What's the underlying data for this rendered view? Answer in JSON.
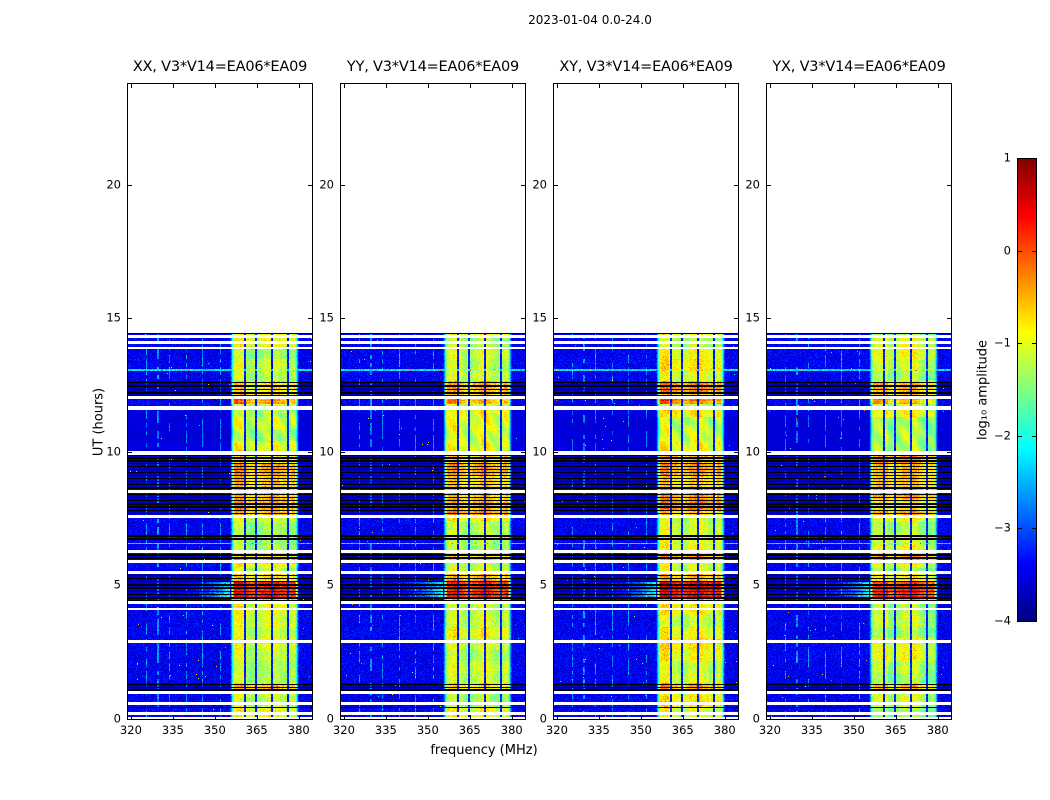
{
  "chart_data": {
    "type": "heatmap",
    "title": "2023-01-04 0.0-24.0",
    "xlabel": "frequency (MHz)",
    "ylabel": "UT (hours)",
    "colorbar_label": "log₁₀ amplitude",
    "colormap": "jet",
    "grid": false,
    "xlim": [
      318.6,
      385.1
    ],
    "ylim": [
      0,
      23.8
    ],
    "clim": [
      -4,
      1
    ],
    "xticks": [
      320,
      335,
      350,
      365,
      380
    ],
    "yticks": [
      0,
      5,
      10,
      15,
      20
    ],
    "ctick_labels": [
      "1",
      "0",
      "−1",
      "−2",
      "−3",
      "−4"
    ],
    "ctick_values": [
      1,
      0,
      -1,
      -2,
      -3,
      -4
    ],
    "panels": [
      {
        "pol": "XX",
        "title": "XX, V3*V14=EA06*EA09",
        "seed": 101,
        "band_boost": 0.0,
        "burst_boost": 0.0
      },
      {
        "pol": "YY",
        "title": "YY, V3*V14=EA06*EA09",
        "seed": 202,
        "band_boost": 0.03,
        "burst_boost": -0.08
      },
      {
        "pol": "XY",
        "title": "XY, V3*V14=EA06*EA09",
        "seed": 303,
        "band_boost": 0.1,
        "burst_boost": 0.12
      },
      {
        "pol": "YX",
        "title": "YX, V3*V14=EA06*EA09",
        "seed": 404,
        "band_boost": -0.04,
        "burst_boost": -0.15
      }
    ],
    "features": {
      "time_coverage_hours": [
        0,
        14.47
      ],
      "background_level": -3.45,
      "quiet_block_hours": [
        10.05,
        11.55
      ],
      "rfi_band_mhz": [
        355.9,
        379.3
      ],
      "rfi_band_level": -1.15,
      "band_notch_lines_mhz": [
        360.7,
        364.4,
        370.4,
        376.0
      ],
      "faint_vertical_lines_mhz": [
        325.4,
        329.5,
        333.6,
        339.8,
        345.5,
        351.9
      ],
      "bursts": [
        {
          "hours": [
            4.56,
            5.14
          ],
          "level": 0.25,
          "tail": true,
          "left_weight": false
        },
        {
          "hours": [
            11.82,
            12.03
          ],
          "level": -0.55,
          "tail": false,
          "left_weight": true
        }
      ],
      "bright_rows_hours": [
        13.08,
        6.58
      ],
      "gap_rows_hours": [
        [
          14.32,
          0.1
        ],
        [
          14.1,
          0.1
        ],
        [
          13.9,
          0.1
        ],
        [
          12.05,
          0.11
        ],
        [
          11.66,
          0.16
        ],
        [
          9.97,
          0.15
        ],
        [
          8.53,
          0.11
        ],
        [
          7.6,
          0.11
        ],
        [
          6.27,
          0.11
        ],
        [
          5.93,
          0.11
        ],
        [
          5.5,
          0.13
        ],
        [
          4.38,
          0.1
        ],
        [
          4.13,
          0.1
        ],
        [
          2.93,
          0.12
        ],
        [
          1.02,
          0.1
        ],
        [
          0.6,
          0.1
        ],
        [
          0.22,
          0.1
        ],
        [
          0.06,
          0.05
        ]
      ],
      "flagged_rows_hours": [
        14.44,
        12.62,
        12.48,
        12.35,
        12.22,
        12.12,
        9.9,
        9.79,
        9.68,
        9.57,
        9.46,
        9.35,
        9.24,
        9.12,
        9.01,
        8.9,
        8.79,
        8.67,
        8.43,
        8.31,
        8.19,
        8.07,
        7.95,
        7.83,
        7.71,
        6.87,
        6.76,
        6.15,
        6.04,
        5.4,
        5.28,
        5.16,
        5.04,
        4.92,
        4.8,
        4.67,
        4.54,
        4.44,
        1.3,
        1.2,
        1.11,
        0.44
      ],
      "dark_cluster_hours": [
        [
          12.08,
          12.68
        ],
        [
          7.66,
          9.95
        ],
        [
          5.98,
          6.2
        ],
        [
          4.4,
          5.46
        ],
        [
          1.06,
          1.36
        ]
      ]
    }
  }
}
